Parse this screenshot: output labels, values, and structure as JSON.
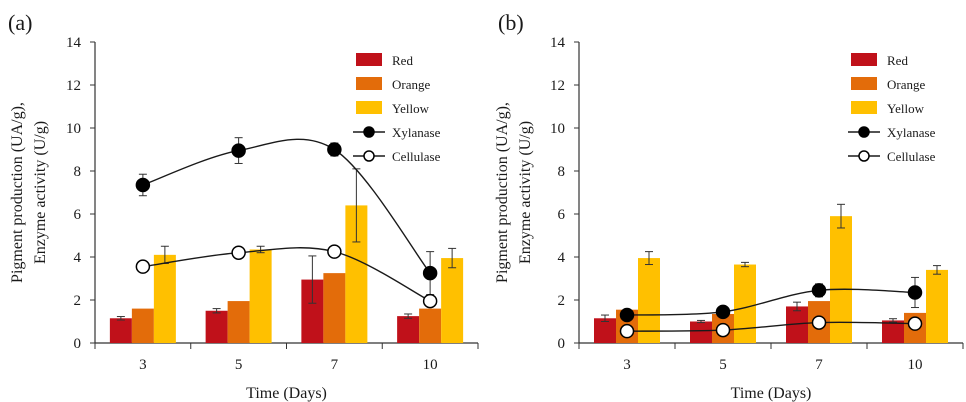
{
  "chart_data": [
    {
      "type": "bar",
      "panel_label": "(a)",
      "categories": [
        "3",
        "5",
        "7",
        "10"
      ],
      "xlabel": "Time (Days)",
      "ylabel_line1": "Pigment production (UA/g),",
      "ylabel_line2": "Enzyme activity (U/g)",
      "ylim": [
        0,
        14
      ],
      "yticks": [
        "0",
        "2",
        "4",
        "6",
        "8",
        "10",
        "12",
        "14"
      ],
      "legend_position": "top-right",
      "series": [
        {
          "name": "Red",
          "kind": "bar",
          "color": "#c0111a",
          "values": [
            1.15,
            1.5,
            2.95,
            1.25
          ],
          "errors": [
            0.08,
            0.1,
            1.1,
            0.1
          ]
        },
        {
          "name": "Orange",
          "kind": "bar",
          "color": "#e36c0a",
          "values": [
            1.6,
            1.95,
            3.25,
            1.6
          ],
          "errors": [
            0,
            0,
            0,
            0
          ]
        },
        {
          "name": "Yellow",
          "kind": "bar",
          "color": "#ffc000",
          "values": [
            4.1,
            4.35,
            6.4,
            3.95
          ],
          "errors": [
            0.4,
            0.15,
            1.7,
            0.45
          ]
        },
        {
          "name": "Xylanase",
          "kind": "line",
          "marker": "filled",
          "values": [
            7.35,
            8.95,
            9.0,
            3.25
          ],
          "errors": [
            0.5,
            0.6,
            0.3,
            1.0
          ]
        },
        {
          "name": "Cellulase",
          "kind": "line",
          "marker": "open",
          "values": [
            3.55,
            4.2,
            4.25,
            1.95
          ],
          "errors": [
            0,
            0,
            0,
            0.2
          ]
        }
      ]
    },
    {
      "type": "bar",
      "panel_label": "(b)",
      "categories": [
        "3",
        "5",
        "7",
        "10"
      ],
      "xlabel": "Time (Days)",
      "ylabel_line1": "Pigment production (UA/g),",
      "ylabel_line2": "Enzyme activity (U/g)",
      "ylim": [
        0,
        14
      ],
      "yticks": [
        "0",
        "2",
        "4",
        "6",
        "8",
        "10",
        "12",
        "14"
      ],
      "legend_position": "top-right",
      "series": [
        {
          "name": "Red",
          "kind": "bar",
          "color": "#c0111a",
          "values": [
            1.15,
            1.0,
            1.7,
            1.05
          ],
          "errors": [
            0.15,
            0.05,
            0.2,
            0.08
          ]
        },
        {
          "name": "Orange",
          "kind": "bar",
          "color": "#e36c0a",
          "values": [
            1.55,
            1.35,
            1.95,
            1.4
          ],
          "errors": [
            0,
            0,
            0,
            0
          ]
        },
        {
          "name": "Yellow",
          "kind": "bar",
          "color": "#ffc000",
          "values": [
            3.95,
            3.65,
            5.9,
            3.4
          ],
          "errors": [
            0.3,
            0.1,
            0.55,
            0.2
          ]
        },
        {
          "name": "Xylanase",
          "kind": "line",
          "marker": "filled",
          "values": [
            1.3,
            1.45,
            2.45,
            2.35
          ],
          "errors": [
            0,
            0,
            0.3,
            0.7
          ]
        },
        {
          "name": "Cellulase",
          "kind": "line",
          "marker": "open",
          "values": [
            0.55,
            0.6,
            0.95,
            0.9
          ],
          "errors": [
            0,
            0,
            0,
            0
          ]
        }
      ]
    }
  ]
}
